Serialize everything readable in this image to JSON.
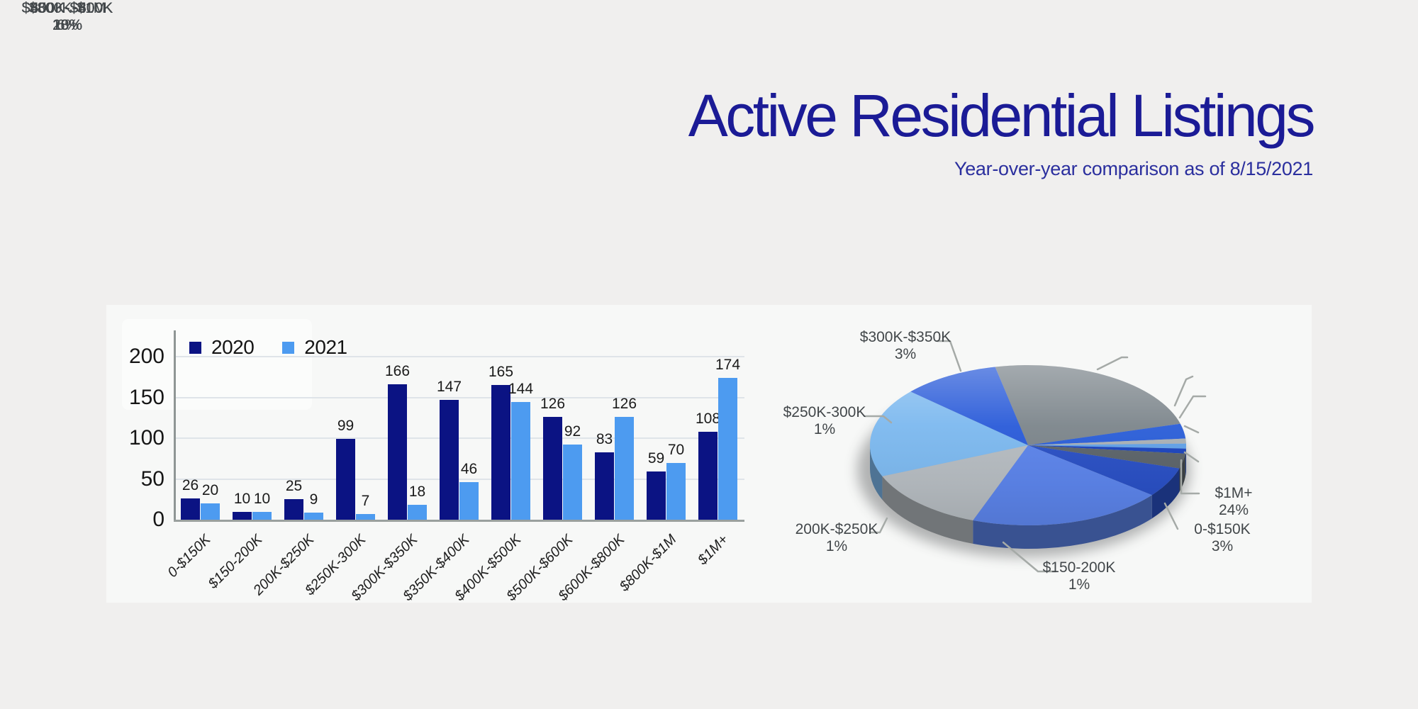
{
  "header": {
    "title": "Active Residential Listings",
    "subtitle": "Year-over-year comparison as of 8/15/2021"
  },
  "colors": {
    "page_bg": "#f0efee",
    "panel": "#f7f8f7",
    "title": "#1b1b96",
    "subtitle": "#2b2f9e",
    "grid": "#dfe4e9",
    "axis": "#9aa09e",
    "series_2020": "#0b1383",
    "series_2021": "#4d9bf0",
    "pie_label_text": "#42474a",
    "leader_line": "#a5aaa7"
  },
  "chart_data": [
    {
      "type": "bar",
      "title": "",
      "xlabel": "",
      "ylabel": "",
      "ylim": [
        0,
        200
      ],
      "yticks": [
        0,
        50,
        100,
        150,
        200
      ],
      "grid": true,
      "legend_position": "top-left",
      "categories": [
        "0-$150K",
        "$150-200K",
        "200K-$250K",
        "$250K-300K",
        "$300K-$350K",
        "$350K-$400K",
        "$400K-$500K",
        "$500K-$600K",
        "$600K-$800K",
        "$800K-$1M",
        "$1M+"
      ],
      "series": [
        {
          "name": "2020",
          "color": "#0b1383",
          "values": [
            26,
            10,
            25,
            99,
            166,
            147,
            165,
            126,
            83,
            59,
            108
          ]
        },
        {
          "name": "2021",
          "color": "#4d9bf0",
          "values": [
            20,
            10,
            9,
            7,
            18,
            46,
            144,
            92,
            126,
            70,
            174
          ]
        }
      ]
    },
    {
      "type": "pie",
      "title": "",
      "legend_position": "none",
      "slices": [
        {
          "label": "$1M+",
          "pct": "24%",
          "value": 24,
          "color": "#7d868c"
        },
        {
          "label": "0-$150K",
          "pct": "3%",
          "value": 3,
          "color": "#2c5fd8"
        },
        {
          "label": "$150-200K",
          "pct": "1%",
          "value": 1,
          "color": "#aab1b6"
        },
        {
          "label": "200K-$250K",
          "pct": "1%",
          "value": 1,
          "color": "#62a2e8"
        },
        {
          "label": "$250K-300K",
          "pct": "1%",
          "value": 1,
          "color": "#1c44bd"
        },
        {
          "label": "$300K-$350K",
          "pct": "3%",
          "value": 3,
          "color": "#5c646a"
        },
        {
          "label": "$350K-$400K",
          "pct": "6%",
          "value": 6,
          "color": "#2a50c4"
        },
        {
          "label": "$400K-$500K",
          "pct": "20%",
          "value": 20,
          "color": "#5c84ea"
        },
        {
          "label": "$500K-$600K",
          "pct": "13%",
          "value": 13,
          "color": "#b6bcc1"
        },
        {
          "label": "$600K-$800K",
          "pct": "18%",
          "value": 18,
          "color": "#7db9ef"
        },
        {
          "label": "$800K-$1M",
          "pct": "10%",
          "value": 10,
          "color": "#2b5cd9"
        }
      ]
    }
  ]
}
